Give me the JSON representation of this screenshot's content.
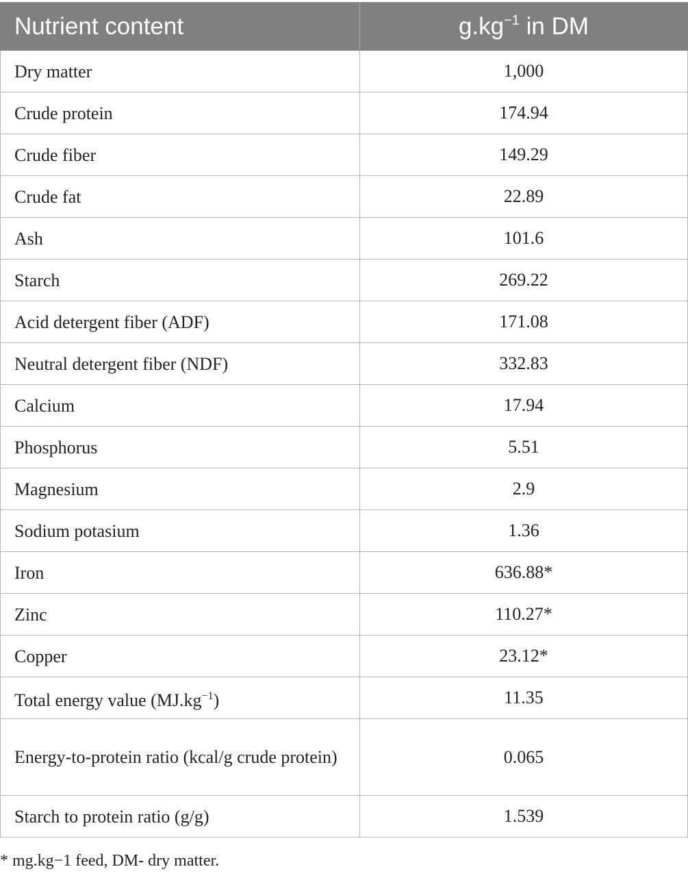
{
  "table": {
    "header": {
      "col1": "Nutrient content",
      "col2_pre": "g.kg",
      "col2_sup": "−1",
      "col2_post": " in DM"
    },
    "rows": [
      {
        "name": "Dry matter",
        "value": "1,000"
      },
      {
        "name": "Crude protein",
        "value": "174.94"
      },
      {
        "name": "Crude fiber",
        "value": "149.29"
      },
      {
        "name": "Crude fat",
        "value": "22.89"
      },
      {
        "name": "Ash",
        "value": "101.6"
      },
      {
        "name": "Starch",
        "value": "269.22"
      },
      {
        "name": "Acid detergent fiber (ADF)",
        "value": "171.08"
      },
      {
        "name": "Neutral detergent fiber (NDF)",
        "value": "332.83"
      },
      {
        "name": "Calcium",
        "value": "17.94"
      },
      {
        "name": "Phosphorus",
        "value": "5.51"
      },
      {
        "name": "Magnesium",
        "value": "2.9"
      },
      {
        "name": "Sodium potasium",
        "value": "1.36"
      },
      {
        "name": "Iron",
        "value": "636.88*"
      },
      {
        "name": "Zinc",
        "value": "110.27*"
      },
      {
        "name": "Copper",
        "value": "23.12*"
      },
      {
        "name_pre": "Total energy value (MJ.kg",
        "name_sup": "−1",
        "name_post": ")",
        "value": "11.35"
      },
      {
        "name": "Energy-to-protein ratio (kcal/g crude protein)",
        "value": "0.065"
      },
      {
        "name": "Starch to protein ratio (g/g)",
        "value": "1.539"
      }
    ]
  },
  "footnote": "* mg.kg−1 feed, DM- dry matter."
}
